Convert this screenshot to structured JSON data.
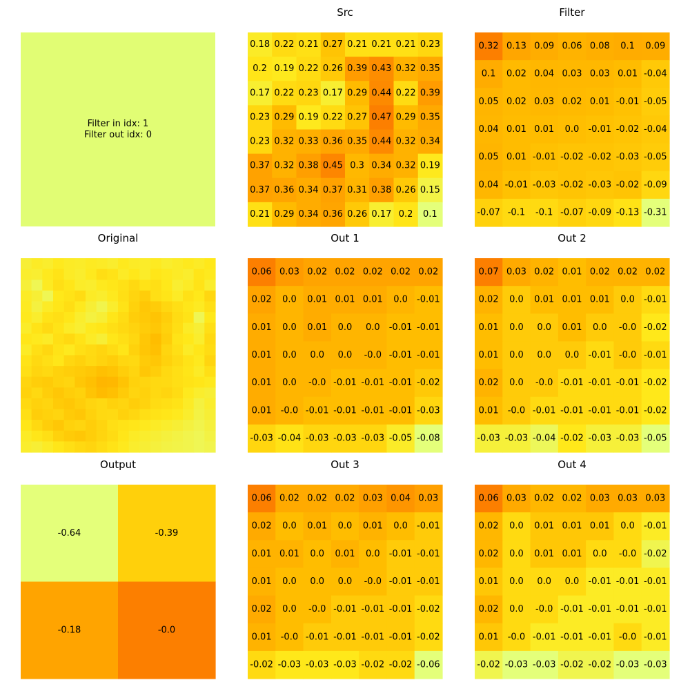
{
  "chart_data": [
    {
      "id": "info",
      "type": "table",
      "title": "",
      "text_lines": [
        "Filter in idx: 1",
        "Filter out idx: 0"
      ],
      "background": "#e1fd74"
    },
    {
      "id": "src",
      "type": "heatmap",
      "title": "Src",
      "rows": 8,
      "cols": 8,
      "colormap": "Wistia",
      "vmin": 0.1,
      "vmax": 0.47,
      "values": [
        [
          "0.18",
          "0.22",
          "0.21",
          "0.27",
          "0.21",
          "0.21",
          "0.21",
          "0.23"
        ],
        [
          "0.2",
          "0.19",
          "0.22",
          "0.26",
          "0.39",
          "0.43",
          "0.32",
          "0.35"
        ],
        [
          "0.17",
          "0.22",
          "0.23",
          "0.17",
          "0.29",
          "0.44",
          "0.22",
          "0.39"
        ],
        [
          "0.23",
          "0.29",
          "0.19",
          "0.22",
          "0.27",
          "0.47",
          "0.29",
          "0.35"
        ],
        [
          "0.23",
          "0.32",
          "0.33",
          "0.36",
          "0.35",
          "0.44",
          "0.32",
          "0.34"
        ],
        [
          "0.37",
          "0.32",
          "0.38",
          "0.45",
          "0.3",
          "0.34",
          "0.32",
          "0.19"
        ],
        [
          "0.37",
          "0.36",
          "0.34",
          "0.37",
          "0.31",
          "0.38",
          "0.26",
          "0.15"
        ],
        [
          "0.21",
          "0.29",
          "0.34",
          "0.36",
          "0.26",
          "0.17",
          "0.2",
          "0.1"
        ]
      ]
    },
    {
      "id": "filter",
      "type": "heatmap",
      "title": "Filter",
      "rows": 7,
      "cols": 7,
      "colormap": "Wistia",
      "vmin": -0.31,
      "vmax": 0.32,
      "values": [
        [
          "0.32",
          "0.13",
          "0.09",
          "0.06",
          "0.08",
          "0.1",
          "0.09"
        ],
        [
          "0.1",
          "0.02",
          "0.04",
          "0.03",
          "0.03",
          "0.01",
          "-0.04"
        ],
        [
          "0.05",
          "0.02",
          "0.03",
          "0.02",
          "0.01",
          "-0.01",
          "-0.05"
        ],
        [
          "0.04",
          "0.01",
          "0.01",
          "0.0",
          "-0.01",
          "-0.02",
          "-0.04"
        ],
        [
          "0.05",
          "0.01",
          "-0.01",
          "-0.02",
          "-0.02",
          "-0.03",
          "-0.05"
        ],
        [
          "0.04",
          "-0.01",
          "-0.03",
          "-0.02",
          "-0.03",
          "-0.02",
          "-0.09"
        ],
        [
          "-0.07",
          "-0.1",
          "-0.1",
          "-0.07",
          "-0.09",
          "-0.13",
          "-0.31"
        ]
      ]
    },
    {
      "id": "original",
      "type": "heatmap",
      "title": "Original",
      "rows": 18,
      "cols": 18,
      "colormap": "Wistia",
      "vmin": 0,
      "vmax": 1,
      "show_values": false,
      "values": [
        [
          0.18,
          0.22,
          0.2,
          0.24,
          0.22,
          0.21,
          0.23,
          0.22,
          0.2,
          0.24,
          0.22,
          0.21,
          0.23,
          0.2,
          0.22,
          0.24,
          0.22,
          0.25
        ],
        [
          0.2,
          0.19,
          0.24,
          0.28,
          0.22,
          0.2,
          0.24,
          0.31,
          0.28,
          0.22,
          0.25,
          0.21,
          0.26,
          0.24,
          0.22,
          0.2,
          0.27,
          0.24
        ],
        [
          0.17,
          0.1,
          0.23,
          0.3,
          0.26,
          0.21,
          0.2,
          0.24,
          0.26,
          0.29,
          0.34,
          0.28,
          0.3,
          0.25,
          0.19,
          0.22,
          0.28,
          0.2
        ],
        [
          0.22,
          0.18,
          0.1,
          0.25,
          0.28,
          0.32,
          0.22,
          0.2,
          0.24,
          0.3,
          0.36,
          0.4,
          0.3,
          0.27,
          0.22,
          0.29,
          0.25,
          0.35
        ],
        [
          0.23,
          0.15,
          0.22,
          0.26,
          0.31,
          0.24,
          0.18,
          0.12,
          0.2,
          0.28,
          0.38,
          0.44,
          0.41,
          0.35,
          0.3,
          0.26,
          0.23,
          0.3
        ],
        [
          0.24,
          0.2,
          0.28,
          0.3,
          0.26,
          0.2,
          0.15,
          0.18,
          0.26,
          0.32,
          0.4,
          0.43,
          0.46,
          0.4,
          0.32,
          0.28,
          0.1,
          0.25
        ],
        [
          0.21,
          0.28,
          0.33,
          0.28,
          0.22,
          0.19,
          0.24,
          0.26,
          0.3,
          0.34,
          0.37,
          0.41,
          0.44,
          0.38,
          0.31,
          0.22,
          0.18,
          0.3
        ],
        [
          0.26,
          0.24,
          0.22,
          0.3,
          0.34,
          0.28,
          0.22,
          0.18,
          0.26,
          0.3,
          0.35,
          0.44,
          0.5,
          0.4,
          0.28,
          0.25,
          0.2,
          0.34
        ],
        [
          0.22,
          0.3,
          0.35,
          0.28,
          0.24,
          0.3,
          0.33,
          0.36,
          0.32,
          0.27,
          0.38,
          0.45,
          0.48,
          0.36,
          0.3,
          0.22,
          0.26,
          0.32
        ],
        [
          0.28,
          0.34,
          0.3,
          0.26,
          0.35,
          0.38,
          0.34,
          0.37,
          0.4,
          0.35,
          0.34,
          0.42,
          0.44,
          0.38,
          0.33,
          0.28,
          0.24,
          0.36
        ],
        [
          0.3,
          0.36,
          0.34,
          0.38,
          0.4,
          0.42,
          0.44,
          0.48,
          0.46,
          0.4,
          0.36,
          0.44,
          0.4,
          0.34,
          0.3,
          0.27,
          0.22,
          0.3
        ],
        [
          0.36,
          0.4,
          0.42,
          0.38,
          0.36,
          0.44,
          0.48,
          0.56,
          0.54,
          0.46,
          0.38,
          0.36,
          0.34,
          0.33,
          0.3,
          0.28,
          0.26,
          0.24
        ],
        [
          0.38,
          0.34,
          0.4,
          0.44,
          0.4,
          0.38,
          0.46,
          0.52,
          0.48,
          0.42,
          0.36,
          0.38,
          0.34,
          0.36,
          0.32,
          0.24,
          0.2,
          0.18
        ],
        [
          0.34,
          0.38,
          0.36,
          0.42,
          0.44,
          0.4,
          0.36,
          0.34,
          0.38,
          0.36,
          0.4,
          0.37,
          0.32,
          0.3,
          0.28,
          0.22,
          0.15,
          0.2
        ],
        [
          0.3,
          0.4,
          0.38,
          0.36,
          0.42,
          0.44,
          0.38,
          0.34,
          0.33,
          0.38,
          0.35,
          0.3,
          0.28,
          0.26,
          0.24,
          0.2,
          0.14,
          0.18
        ],
        [
          0.26,
          0.34,
          0.4,
          0.44,
          0.38,
          0.36,
          0.4,
          0.36,
          0.3,
          0.28,
          0.26,
          0.24,
          0.22,
          0.2,
          0.18,
          0.15,
          0.12,
          0.16
        ],
        [
          0.22,
          0.26,
          0.3,
          0.38,
          0.42,
          0.44,
          0.4,
          0.36,
          0.32,
          0.26,
          0.22,
          0.2,
          0.18,
          0.16,
          0.14,
          0.12,
          0.1,
          0.14
        ],
        [
          0.2,
          0.18,
          0.22,
          0.26,
          0.3,
          0.34,
          0.36,
          0.32,
          0.28,
          0.24,
          0.2,
          0.18,
          0.16,
          0.14,
          0.13,
          0.12,
          0.1,
          0.12
        ]
      ]
    },
    {
      "id": "out1",
      "type": "heatmap",
      "title": "Out 1",
      "rows": 7,
      "cols": 7,
      "colormap": "Wistia",
      "vmin": -0.08,
      "vmax": 0.06,
      "values": [
        [
          "0.06",
          "0.03",
          "0.02",
          "0.02",
          "0.02",
          "0.02",
          "0.02"
        ],
        [
          "0.02",
          "0.0",
          "0.01",
          "0.01",
          "0.01",
          "0.0",
          "-0.01"
        ],
        [
          "0.01",
          "0.0",
          "0.01",
          "0.0",
          "0.0",
          "-0.01",
          "-0.01"
        ],
        [
          "0.01",
          "0.0",
          "0.0",
          "0.0",
          "-0.0",
          "-0.01",
          "-0.01"
        ],
        [
          "0.01",
          "0.0",
          "-0.0",
          "-0.01",
          "-0.01",
          "-0.01",
          "-0.02"
        ],
        [
          "0.01",
          "-0.0",
          "-0.01",
          "-0.01",
          "-0.01",
          "-0.01",
          "-0.03"
        ],
        [
          "-0.03",
          "-0.04",
          "-0.03",
          "-0.03",
          "-0.03",
          "-0.05",
          "-0.08"
        ]
      ]
    },
    {
      "id": "out2",
      "type": "heatmap",
      "title": "Out 2",
      "rows": 7,
      "cols": 7,
      "colormap": "Wistia",
      "vmin": -0.05,
      "vmax": 0.07,
      "values": [
        [
          "0.07",
          "0.03",
          "0.02",
          "0.01",
          "0.02",
          "0.02",
          "0.02"
        ],
        [
          "0.02",
          "0.0",
          "0.01",
          "0.01",
          "0.01",
          "0.0",
          "-0.01"
        ],
        [
          "0.01",
          "0.0",
          "0.0",
          "0.01",
          "0.0",
          "-0.0",
          "-0.02"
        ],
        [
          "0.01",
          "0.0",
          "0.0",
          "0.0",
          "-0.01",
          "-0.0",
          "-0.01"
        ],
        [
          "0.02",
          "0.0",
          "-0.0",
          "-0.01",
          "-0.01",
          "-0.01",
          "-0.02"
        ],
        [
          "0.01",
          "-0.0",
          "-0.01",
          "-0.01",
          "-0.01",
          "-0.01",
          "-0.02"
        ],
        [
          "-0.03",
          "-0.03",
          "-0.04",
          "-0.02",
          "-0.03",
          "-0.03",
          "-0.05"
        ]
      ]
    },
    {
      "id": "output",
      "type": "heatmap",
      "title": "Output",
      "rows": 2,
      "cols": 2,
      "colormap": "Wistia",
      "vmin": -0.64,
      "vmax": 0.0,
      "values": [
        [
          "-0.64",
          "-0.39"
        ],
        [
          "-0.18",
          "-0.0"
        ]
      ]
    },
    {
      "id": "out3",
      "type": "heatmap",
      "title": "Out 3",
      "rows": 7,
      "cols": 7,
      "colormap": "Wistia",
      "vmin": -0.06,
      "vmax": 0.06,
      "values": [
        [
          "0.06",
          "0.02",
          "0.02",
          "0.02",
          "0.03",
          "0.04",
          "0.03"
        ],
        [
          "0.02",
          "0.0",
          "0.01",
          "0.0",
          "0.01",
          "0.0",
          "-0.01"
        ],
        [
          "0.01",
          "0.01",
          "0.0",
          "0.01",
          "0.0",
          "-0.01",
          "-0.01"
        ],
        [
          "0.01",
          "0.0",
          "0.0",
          "0.0",
          "-0.0",
          "-0.01",
          "-0.01"
        ],
        [
          "0.02",
          "0.0",
          "-0.0",
          "-0.01",
          "-0.01",
          "-0.01",
          "-0.02"
        ],
        [
          "0.01",
          "-0.0",
          "-0.01",
          "-0.01",
          "-0.01",
          "-0.01",
          "-0.02"
        ],
        [
          "-0.02",
          "-0.03",
          "-0.03",
          "-0.03",
          "-0.02",
          "-0.02",
          "-0.06"
        ]
      ]
    },
    {
      "id": "out4",
      "type": "heatmap",
      "title": "Out 4",
      "rows": 7,
      "cols": 7,
      "colormap": "Wistia",
      "vmin": -0.03,
      "vmax": 0.06,
      "values": [
        [
          "0.06",
          "0.03",
          "0.02",
          "0.02",
          "0.03",
          "0.03",
          "0.03"
        ],
        [
          "0.02",
          "0.0",
          "0.01",
          "0.01",
          "0.01",
          "0.0",
          "-0.01"
        ],
        [
          "0.02",
          "0.0",
          "0.01",
          "0.01",
          "0.0",
          "-0.0",
          "-0.02"
        ],
        [
          "0.01",
          "0.0",
          "0.0",
          "0.0",
          "-0.01",
          "-0.01",
          "-0.01"
        ],
        [
          "0.02",
          "0.0",
          "-0.0",
          "-0.01",
          "-0.01",
          "-0.01",
          "-0.01"
        ],
        [
          "0.01",
          "-0.0",
          "-0.01",
          "-0.01",
          "-0.01",
          "-0.0",
          "-0.01"
        ],
        [
          "-0.02",
          "-0.03",
          "-0.03",
          "-0.02",
          "-0.02",
          "-0.03",
          "-0.03"
        ]
      ]
    }
  ]
}
